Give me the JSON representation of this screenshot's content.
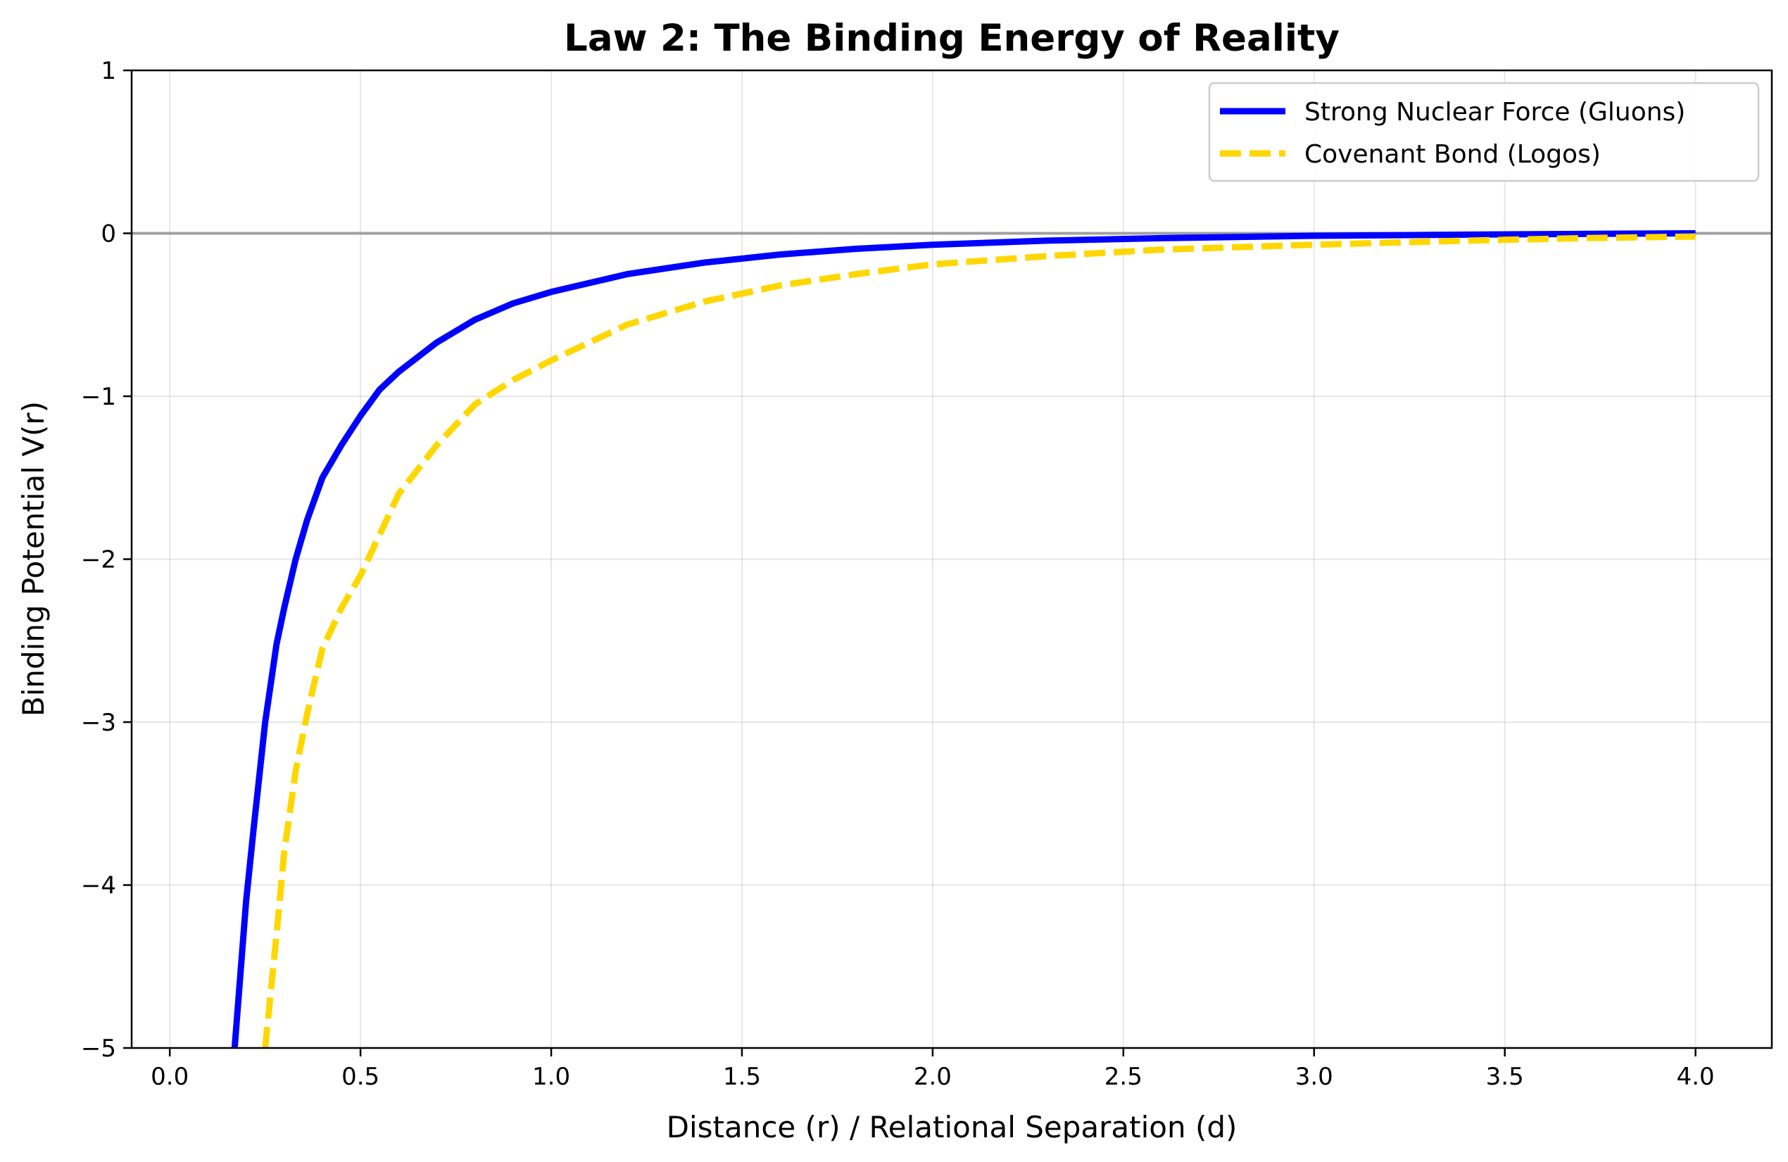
{
  "chart_data": {
    "type": "line",
    "title": "Law 2: The Binding Energy of Reality",
    "xlabel": "Distance (r) / Relational Separation (d)",
    "ylabel": "Binding Potential V(r)",
    "xlim": [
      -0.1,
      4.2
    ],
    "ylim": [
      -5,
      1
    ],
    "grid": true,
    "legend_position": "top-right",
    "x_ticks": [
      {
        "value": 0.0,
        "label": "0.0"
      },
      {
        "value": 0.5,
        "label": "0.5"
      },
      {
        "value": 1.0,
        "label": "1.0"
      },
      {
        "value": 1.5,
        "label": "1.5"
      },
      {
        "value": 2.0,
        "label": "2.0"
      },
      {
        "value": 2.5,
        "label": "2.5"
      },
      {
        "value": 3.0,
        "label": "3.0"
      },
      {
        "value": 3.5,
        "label": "3.5"
      },
      {
        "value": 4.0,
        "label": "4.0"
      }
    ],
    "y_ticks": [
      {
        "value": 1,
        "label": "1"
      },
      {
        "value": 0,
        "label": "0"
      },
      {
        "value": -1,
        "label": "−1"
      },
      {
        "value": -2,
        "label": "−2"
      },
      {
        "value": -3,
        "label": "−3"
      },
      {
        "value": -4,
        "label": "−4"
      },
      {
        "value": -5,
        "label": "−5"
      }
    ],
    "reference_line": {
      "y": 0,
      "color": "#a0a0a0"
    },
    "series": [
      {
        "name": "Strong Nuclear Force (Gluons)",
        "color": "#0000ff",
        "style": "solid",
        "x": [
          0.17,
          0.2,
          0.22,
          0.25,
          0.28,
          0.3,
          0.33,
          0.36,
          0.4,
          0.45,
          0.5,
          0.55,
          0.6,
          0.7,
          0.8,
          0.9,
          1.0,
          1.2,
          1.4,
          1.6,
          1.8,
          2.0,
          2.3,
          2.6,
          3.0,
          3.4,
          3.7,
          4.0
        ],
        "y": [
          -5.0,
          -4.1,
          -3.65,
          -3.0,
          -2.52,
          -2.3,
          -2.0,
          -1.76,
          -1.5,
          -1.3,
          -1.12,
          -0.96,
          -0.85,
          -0.67,
          -0.53,
          -0.43,
          -0.36,
          -0.25,
          -0.18,
          -0.13,
          -0.095,
          -0.07,
          -0.045,
          -0.03,
          -0.015,
          -0.008,
          -0.004,
          0.0
        ]
      },
      {
        "name": "Covenant Bond (Logos)",
        "color": "#ffd700",
        "style": "dashed",
        "x": [
          0.25,
          0.28,
          0.3,
          0.33,
          0.36,
          0.4,
          0.45,
          0.5,
          0.55,
          0.6,
          0.7,
          0.8,
          0.9,
          1.0,
          1.2,
          1.4,
          1.6,
          1.8,
          2.0,
          2.3,
          2.6,
          3.0,
          3.4,
          3.7,
          4.0
        ],
        "y": [
          -5.0,
          -4.3,
          -3.8,
          -3.3,
          -2.95,
          -2.55,
          -2.3,
          -2.1,
          -1.85,
          -1.6,
          -1.3,
          -1.05,
          -0.9,
          -0.78,
          -0.56,
          -0.42,
          -0.32,
          -0.25,
          -0.19,
          -0.14,
          -0.1,
          -0.07,
          -0.045,
          -0.03,
          -0.02
        ]
      }
    ]
  }
}
